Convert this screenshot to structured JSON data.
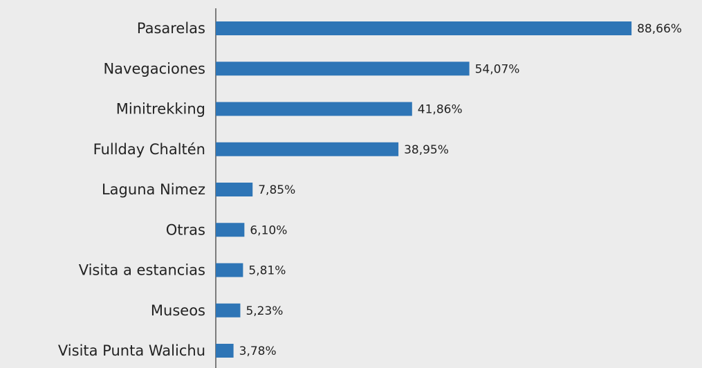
{
  "chart_data": {
    "type": "barh",
    "categories": [
      "Pasarelas",
      "Navegaciones",
      "Minitrekking",
      "Fullday Chaltén",
      "Laguna Nimez",
      "Otras",
      "Visita a estancias",
      "Museos",
      "Visita Punta Walichu"
    ],
    "values": [
      88.66,
      54.07,
      41.86,
      38.95,
      7.85,
      6.1,
      5.81,
      5.23,
      3.78
    ],
    "value_labels": [
      "88,66%",
      "54,07%",
      "41,86%",
      "38,95%",
      "7,85%",
      "6,10%",
      "5,81%",
      "5,23%",
      "3,78%"
    ],
    "color": "#2e75b6"
  }
}
